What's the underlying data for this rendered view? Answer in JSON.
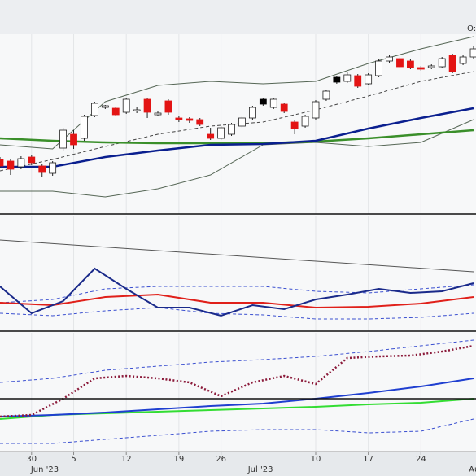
{
  "chart_data": [
    {
      "type": "candlestick",
      "header_label": "O:",
      "xlim": [
        0,
        45
      ],
      "ylim": [
        0,
        221
      ],
      "grid": true,
      "candles": {
        "open": [
          67,
          65,
          58,
          70,
          59,
          50,
          81,
          98,
          93,
          121,
          131,
          130,
          125,
          127,
          141,
          122,
          139,
          118,
          117,
          116,
          98,
          93,
          98,
          108,
          118,
          135,
          131,
          135,
          113,
          108,
          118,
          141,
          162,
          163,
          170,
          160,
          170,
          188,
          191,
          188,
          180,
          180,
          181,
          195,
          185,
          193
        ],
        "high": [
          70,
          67,
          71,
          72,
          61,
          65,
          106,
          103,
          122,
          138,
          134,
          132,
          143,
          131,
          143,
          126,
          141,
          120,
          119,
          118,
          106,
          108,
          112,
          120,
          133,
          143,
          143,
          137,
          115,
          122,
          140,
          153,
          170,
          174,
          172,
          173,
          190,
          196,
          193,
          190,
          182,
          184,
          193,
          197,
          196,
          206
        ],
        "low": [
          56,
          48,
          55,
          60,
          45,
          47,
          78,
          80,
          90,
          119,
          129,
          120,
          123,
          124,
          118,
          120,
          122,
          113,
          112,
          108,
          91,
          91,
          96,
          106,
          116,
          133,
          129,
          124,
          98,
          106,
          116,
          139,
          160,
          161,
          155,
          158,
          168,
          186,
          179,
          178,
          176,
          178,
          179,
          173,
          183,
          190
        ],
        "close": [
          59,
          55,
          68,
          63,
          51,
          63,
          103,
          85,
          120,
          136,
          133,
          122,
          141,
          128,
          125,
          124,
          125,
          116,
          115,
          110,
          93,
          106,
          110,
          118,
          131,
          141,
          141,
          126,
          105,
          120,
          138,
          151,
          168,
          171,
          157,
          171,
          188,
          193,
          181,
          180,
          178,
          182,
          191,
          175,
          193,
          203
        ],
        "colors": [
          "#e31414",
          "#e31414",
          "#ffffff",
          "#e31414",
          "#e31414",
          "#ffffff",
          "#ffffff",
          "#e31414",
          "#ffffff",
          "#ffffff",
          "#ffffff",
          "#e31414",
          "#ffffff",
          "#ffffff",
          "#e31414",
          "#ffffff",
          "#e31414",
          "#e31414",
          "#e31414",
          "#e31414",
          "#e31414",
          "#ffffff",
          "#ffffff",
          "#ffffff",
          "#ffffff",
          "#000000",
          "#ffffff",
          "#e31414",
          "#e31414",
          "#ffffff",
          "#ffffff",
          "#ffffff",
          "#000000",
          "#ffffff",
          "#e31414",
          "#ffffff",
          "#ffffff",
          "#ffffff",
          "#e31414",
          "#e31414",
          "#e31414",
          "#ffffff",
          "#ffffff",
          "#e31414",
          "#ffffff",
          "#ffffff"
        ]
      },
      "series": [
        {
          "color": "#556655",
          "style": "solid",
          "width": 1,
          "x": [
            0,
            5,
            10,
            15,
            20,
            25,
            30,
            35,
            40,
            45
          ],
          "values": [
            85,
            80,
            138,
            158,
            163,
            160,
            163,
            185,
            203,
            218
          ]
        },
        {
          "color": "#444444",
          "style": "dashed",
          "width": 1,
          "x": [
            0,
            5,
            10,
            15,
            20,
            25,
            30,
            35,
            40,
            45
          ],
          "values": [
            53,
            67,
            83,
            98,
            108,
            113,
            128,
            145,
            163,
            175
          ]
        },
        {
          "color": "#556655",
          "style": "solid",
          "width": 1,
          "x": [
            0,
            5,
            10,
            15,
            20,
            25,
            30,
            35,
            40,
            45
          ],
          "values": [
            28,
            28,
            21,
            31,
            48,
            85,
            88,
            83,
            88,
            116
          ]
        },
        {
          "color": "#3a8f2a",
          "style": "solid",
          "width": 2.5,
          "x": [
            0,
            5,
            10,
            15,
            20,
            25,
            30,
            35,
            40,
            45
          ],
          "values": [
            93,
            90,
            88,
            87,
            87,
            87,
            89,
            93,
            98,
            103
          ]
        },
        {
          "color": "#0a1f8f",
          "style": "solid",
          "width": 2.5,
          "x": [
            0,
            5,
            10,
            15,
            20,
            25,
            30,
            35,
            40,
            45
          ],
          "values": [
            58,
            58,
            70,
            78,
            85,
            86,
            90,
            105,
            118,
            130
          ]
        }
      ]
    },
    {
      "type": "line",
      "xlim": [
        0,
        45
      ],
      "ylim": [
        0,
        142
      ],
      "grid": true,
      "series": [
        {
          "color": "#555555",
          "style": "solid",
          "width": 1,
          "x": [
            0,
            45
          ],
          "values": [
            112,
            73
          ]
        },
        {
          "color": "#3a4fd0",
          "style": "dashed",
          "width": 1,
          "x": [
            0,
            5,
            10,
            15,
            20,
            25,
            30,
            35,
            40,
            45
          ],
          "values": [
            35,
            39,
            52,
            55,
            55,
            55,
            49,
            47,
            52,
            57
          ]
        },
        {
          "color": "#3a4fd0",
          "style": "dashed",
          "width": 1,
          "x": [
            0,
            5,
            10,
            15,
            20,
            25,
            30,
            35,
            40,
            45
          ],
          "values": [
            22,
            19,
            25,
            29,
            22,
            20,
            15,
            15,
            17,
            22
          ]
        },
        {
          "color": "#e0201a",
          "style": "solid",
          "width": 2,
          "x": [
            0,
            5,
            10,
            15,
            20,
            25,
            30,
            35,
            40,
            45
          ],
          "values": [
            35,
            32,
            42,
            45,
            35,
            35,
            29,
            30,
            34,
            42
          ]
        },
        {
          "color": "#1a2a8a",
          "style": "solid",
          "width": 2,
          "x": [
            0,
            3,
            6,
            9,
            12,
            15,
            18,
            21,
            24,
            27,
            30,
            33,
            36,
            39,
            42,
            45
          ],
          "values": [
            55,
            22,
            37,
            77,
            52,
            29,
            29,
            19,
            32,
            27,
            39,
            45,
            52,
            47,
            49,
            59
          ]
        }
      ]
    },
    {
      "type": "line",
      "xlim": [
        0,
        45
      ],
      "ylim": [
        0,
        146
      ],
      "grid": true,
      "hline": 65,
      "series": [
        {
          "color": "#3a4fd0",
          "style": "dashed",
          "width": 1,
          "x": [
            0,
            5,
            10,
            15,
            20,
            25,
            30,
            35,
            40,
            45
          ],
          "values": [
            85,
            90,
            100,
            105,
            110,
            113,
            117,
            123,
            130,
            137
          ]
        },
        {
          "color": "#3a4fd0",
          "style": "dashed",
          "width": 1,
          "x": [
            0,
            5,
            10,
            15,
            20,
            25,
            30,
            35,
            40,
            45
          ],
          "values": [
            10,
            10,
            15,
            20,
            25,
            27,
            27,
            23,
            25,
            40
          ]
        },
        {
          "color": "#33dd33",
          "style": "solid",
          "width": 2,
          "x": [
            0,
            5,
            10,
            15,
            20,
            25,
            30,
            35,
            40,
            45
          ],
          "values": [
            40,
            45,
            47,
            49,
            51,
            53,
            55,
            58,
            60,
            65
          ]
        },
        {
          "color": "#1f3fd0",
          "style": "solid",
          "width": 2,
          "x": [
            0,
            5,
            10,
            15,
            20,
            25,
            30,
            35,
            40,
            45
          ],
          "values": [
            43,
            45,
            48,
            52,
            56,
            59,
            65,
            72,
            80,
            90
          ]
        },
        {
          "color": "#8b1a3a",
          "style": "dotted",
          "width": 2.5,
          "x": [
            0,
            3,
            6,
            9,
            12,
            15,
            18,
            21,
            24,
            27,
            30,
            33,
            36,
            39,
            42,
            45
          ],
          "values": [
            43,
            45,
            65,
            90,
            93,
            90,
            85,
            68,
            85,
            93,
            83,
            115,
            117,
            118,
            123,
            130
          ]
        }
      ],
      "xticks": [
        {
          "value": 3,
          "label": "30"
        },
        {
          "value": 7,
          "label": "5"
        },
        {
          "value": 12,
          "label": "12"
        },
        {
          "value": 17,
          "label": "19"
        },
        {
          "value": 21,
          "label": "26"
        },
        {
          "value": 30,
          "label": "10"
        },
        {
          "value": 35,
          "label": "17"
        },
        {
          "value": 40,
          "label": "24"
        }
      ],
      "month_ticks": [
        {
          "value": 4.25,
          "label": "Jun '23"
        },
        {
          "value": 24.75,
          "label": "Jul '23"
        },
        {
          "value": 45.3,
          "label": "Aug"
        }
      ]
    }
  ]
}
